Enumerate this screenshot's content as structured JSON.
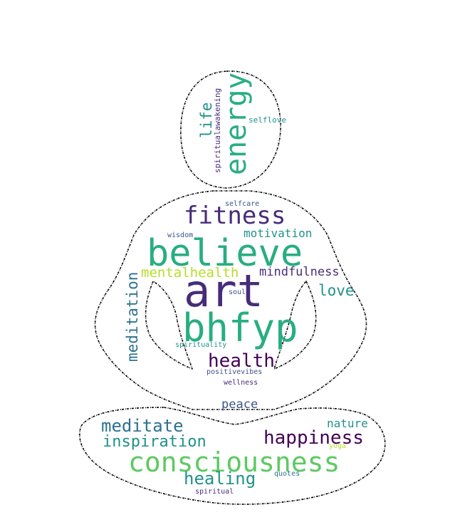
{
  "palette": {
    "dark_purple": "#440154",
    "indigo": "#472c7a",
    "blue": "#3b528b",
    "teal_blue": "#2c728e",
    "teal": "#21918c",
    "green_teal": "#28ae80",
    "green": "#5ec962",
    "lime": "#b5de2b",
    "yellow": "#d8e219",
    "outline": "#000000",
    "background": "#ffffff"
  },
  "shape": "meditating-figure-silhouette",
  "words": {
    "art": "art",
    "believe": "believe",
    "bhfyp": "bhfyp",
    "consciousness": "consciousness",
    "fitness": "fitness",
    "energy": "energy",
    "happiness": "happiness",
    "health": "health",
    "meditate": "meditate",
    "inspiration": "inspiration",
    "healing": "healing",
    "meditation": "meditation",
    "mentalhealth": "mentalhealth",
    "mindfulness": "mindfulness",
    "motivation": "motivation",
    "love": "love",
    "life": "life",
    "peace": "peace",
    "nature": "nature",
    "spiritualawakening": "spiritualawakening",
    "selflove": "selflove",
    "selfcare": "selfcare",
    "wisdom": "wisdom",
    "soul": "soul",
    "spirituality": "spirituality",
    "positivevibes": "positivevibes",
    "wellness": "wellness",
    "yoga": "yoga",
    "quotes": "quotes",
    "spiritual": "spiritual"
  }
}
